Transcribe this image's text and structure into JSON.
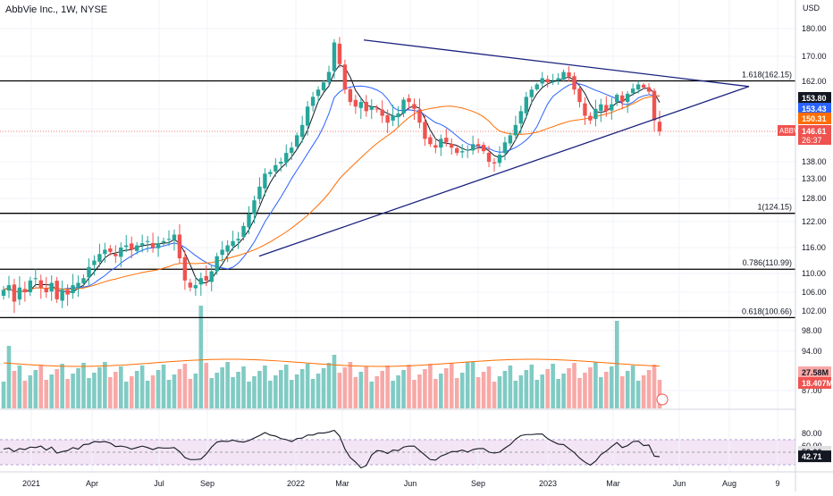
{
  "header": {
    "title": "AbbVie Inc., 1W, NYSE"
  },
  "price_axis": {
    "currency": "USD",
    "ticks": [
      "180.00",
      "170.00",
      "162.00",
      "153.80",
      "150.31",
      "146.61",
      "138.00",
      "133.00",
      "128.00",
      "122.00",
      "116.00",
      "110.00",
      "106.00",
      "102.00",
      "98.00",
      "94.00",
      "87.00"
    ],
    "tick_values": [
      180,
      170,
      162,
      153.8,
      150.31,
      146.61,
      138,
      133,
      128,
      122,
      116,
      110,
      106,
      102,
      98,
      94,
      87
    ]
  },
  "labels": {
    "fib_1618": "1.618(162.15)",
    "fib_1": "1(124.15)",
    "fib_0786": "0.786(110.99)",
    "fib_0618": "0.618(100.66)",
    "ma1_value": "153.80",
    "ma2_value": "153.43",
    "ma3_value": "150.31",
    "ticker": "ABBV",
    "last_price": "146.61",
    "countdown": "26:37",
    "vol_ma": "27.58M",
    "vol_last": "18.407M"
  },
  "rsi_axis": {
    "ticks": [
      "80.00",
      "60.00",
      "50.00",
      "42.71"
    ],
    "tick_values": [
      80,
      60,
      50,
      42.71
    ]
  },
  "time_axis": {
    "labels": [
      "2021",
      "Apr",
      "Jul",
      "Sep",
      "2022",
      "Mar",
      "Jun",
      "Sep",
      "2023",
      "Mar",
      "Jun",
      "Aug",
      "9"
    ]
  },
  "colors": {
    "up": "#26a69a",
    "down": "#ef5350",
    "trend": "#1a237e",
    "fib": "#000000",
    "ma_fast": "#131722",
    "ma_slow_blue": "#2962ff",
    "ma_orange": "#ff6d00",
    "rsi_band": "#f3e5f5"
  },
  "chart_data": {
    "type": "candlestick",
    "title": "AbbVie Inc., 1W, NYSE",
    "y_unit": "USD",
    "horizontal_levels": [
      {
        "name": "1.618",
        "value": 162.15
      },
      {
        "name": "1",
        "value": 124.15
      },
      {
        "name": "0.786",
        "value": 110.99
      },
      {
        "name": "0.618",
        "value": 100.66
      }
    ],
    "trendlines": [
      {
        "from": {
          "date": "2022-04-01",
          "price": 175.9
        },
        "to": {
          "date": "2023-07-15",
          "price": 159.5
        }
      },
      {
        "from": {
          "date": "2021-10-01",
          "price": 114.0
        },
        "to": {
          "date": "2023-07-15",
          "price": 159.5
        }
      }
    ],
    "last_price": 146.61,
    "rsi_last": 42.71,
    "volume_ma_last": "27.58M",
    "volume_last": "18.407M",
    "closes_weekly_approx": [
      106.5,
      107.5,
      104.0,
      107.0,
      106.0,
      108.5,
      109.0,
      107.0,
      106.0,
      108.0,
      104.5,
      106.5,
      105.5,
      107.5,
      108.0,
      109.0,
      111.5,
      113.0,
      114.5,
      115.5,
      115.0,
      114.0,
      116.0,
      116.5,
      115.5,
      116.5,
      117.0,
      117.5,
      116.0,
      117.0,
      117.5,
      118.0,
      119.0,
      113.5,
      108.5,
      107.0,
      107.5,
      109.0,
      108.5,
      110.5,
      114.0,
      115.5,
      116.5,
      117.5,
      118.0,
      121.0,
      124.0,
      127.5,
      131.0,
      134.5,
      135.0,
      137.0,
      138.0,
      140.5,
      142.0,
      145.5,
      148.0,
      152.0,
      154.5,
      158.0,
      161.5,
      165.0,
      175.0,
      167.5,
      158.0,
      153.0,
      152.0,
      153.0,
      151.0,
      152.0,
      151.5,
      150.0,
      148.5,
      150.0,
      150.5,
      153.5,
      153.0,
      151.5,
      148.5,
      144.5,
      143.0,
      142.0,
      144.5,
      143.5,
      142.0,
      140.5,
      141.0,
      141.5,
      143.0,
      142.5,
      141.0,
      138.0,
      137.5,
      140.0,
      143.5,
      145.5,
      148.0,
      151.0,
      154.5,
      158.0,
      160.5,
      163.0,
      161.5,
      162.0,
      163.0,
      165.0,
      163.5,
      158.0,
      153.0,
      150.0,
      149.0,
      151.5,
      152.5,
      151.0,
      152.5,
      155.5,
      153.0,
      156.0,
      158.5,
      160.5,
      159.0,
      157.0,
      149.0,
      146.6
    ]
  }
}
